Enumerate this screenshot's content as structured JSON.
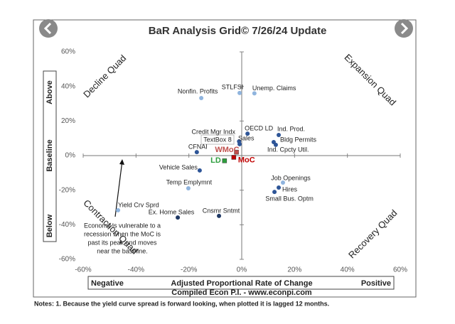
{
  "chart_data": {
    "type": "scatter",
    "title": "BaR Analysis Grid© 7/26/24 Update",
    "xlim": [
      -60,
      60
    ],
    "ylim": [
      -60,
      60
    ],
    "xticks": [
      {
        "value": -60,
        "label": "-60%"
      },
      {
        "value": -40,
        "label": "-40%"
      },
      {
        "value": -20,
        "label": "-20%"
      },
      {
        "value": 0,
        "label": "0%"
      },
      {
        "value": 20,
        "label": "20%"
      },
      {
        "value": 40,
        "label": "40%"
      },
      {
        "value": 60,
        "label": "60%"
      }
    ],
    "yticks": [
      {
        "value": -60,
        "label": "-60%"
      },
      {
        "value": -40,
        "label": "-40%"
      },
      {
        "value": -20,
        "label": "-20%"
      },
      {
        "value": 0,
        "label": "0%"
      },
      {
        "value": 20,
        "label": "20%"
      },
      {
        "value": 40,
        "label": "40%"
      },
      {
        "value": 60,
        "label": "60%"
      }
    ],
    "points": [
      {
        "label": "Nonfin. Profits",
        "x": -15.3,
        "y": 33.3,
        "color": "#8fb4de"
      },
      {
        "label": "STLFSI",
        "x": -0.8,
        "y": 36.2,
        "color": "#8fb4de"
      },
      {
        "label": "Unemp. Claims",
        "x": 4.8,
        "y": 36,
        "color": "#8fb4de"
      },
      {
        "label": "Credit Mgr Indx",
        "x": -1,
        "y": 8.2,
        "color": "#2e5597"
      },
      {
        "label": "OECD LD",
        "x": 2.2,
        "y": 12.7,
        "color": "#2e5597"
      },
      {
        "label": "Sales",
        "x": -0.8,
        "y": 6.6,
        "color": "#2e5597"
      },
      {
        "label": "Ind. Prod.",
        "x": 14,
        "y": 11.9,
        "color": "#2e5597"
      },
      {
        "label": "Bldg Permits",
        "x": 12.1,
        "y": 7.8,
        "color": "#2e5597"
      },
      {
        "label": "Ind. Cpcty Util.",
        "x": 12.9,
        "y": 6.2,
        "color": "#2e5597"
      },
      {
        "label": "CFNAI",
        "x": -17,
        "y": 2,
        "color": "#2e5597"
      },
      {
        "label": "WMoC",
        "x": -2,
        "y": 2,
        "color": "#c0504d"
      },
      {
        "label": "LD",
        "x": -6.5,
        "y": -3,
        "color": "#2e9e3e"
      },
      {
        "label": "MoC",
        "x": -3,
        "y": -1,
        "color": "#c00000"
      },
      {
        "label": "Vehicle Sales",
        "x": -15.9,
        "y": -8.6,
        "color": "#2e5597"
      },
      {
        "label": "Temp Emplymnt",
        "x": -20.2,
        "y": -18.9,
        "color": "#8fb4de"
      },
      {
        "label": "Job Openings",
        "x": 15.6,
        "y": -15.6,
        "color": "#8fb4de"
      },
      {
        "label": "Hires",
        "x": 14,
        "y": -18.5,
        "color": "#2e5597"
      },
      {
        "label": "Small Bus. Optm",
        "x": 12.4,
        "y": -21,
        "color": "#2e5597"
      },
      {
        "label": "Yield Crv Sprd",
        "x": -46.8,
        "y": -31.6,
        "color": "#8fb4de"
      },
      {
        "label": "Ex. Home Sales",
        "x": -24.2,
        "y": -35.8,
        "color": "#1f3864"
      },
      {
        "label": "Cnsmr Sntmt",
        "x": -8.6,
        "y": -34.9,
        "color": "#1f3864"
      }
    ],
    "textbox": "TextBox 8",
    "quadrants": {
      "decline": "Decline Quad",
      "expansion": "Expansion Quad",
      "contraction": "Contraction Quad",
      "recovery": "Recovery Quad"
    },
    "y_labels": {
      "above": "Above",
      "baseline": "Baseline",
      "below": "Below"
    },
    "x_labels": {
      "negative": "Negative",
      "center": "Adjusted Proportional Rate of Change",
      "positive": "Positive"
    },
    "annotation": [
      "Economy is vulnerable to a",
      "recession when the MoC is",
      "past its peak and moves",
      "near the baseline."
    ],
    "source": "Compiled Econ P.I. - www.econpi.com",
    "notes": "Notes: 1. Because the yield curve spread is forward looking, when plotted it is lagged 12 months."
  }
}
